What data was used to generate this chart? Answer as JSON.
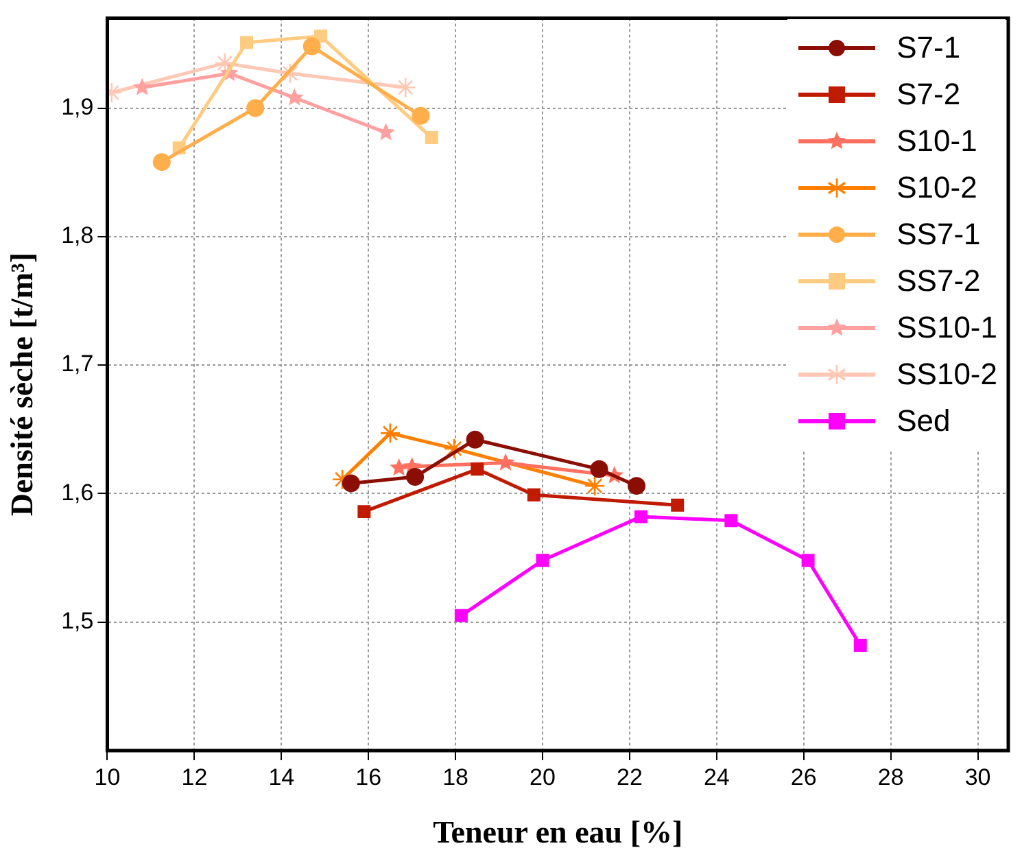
{
  "chart_data": {
    "type": "line",
    "xlabel": "Teneur en eau [%]",
    "ylabel": "Densité sèche [t/m³]",
    "xlim": [
      10,
      30.7
    ],
    "xticks": [
      10,
      12,
      14,
      16,
      18,
      20,
      22,
      24,
      26,
      28,
      30
    ],
    "ylim": [
      1.4,
      1.97
    ],
    "yticks": [
      {
        "value": 1.5,
        "label": "1,5"
      },
      {
        "value": 1.6,
        "label": "1,6"
      },
      {
        "value": 1.7,
        "label": "1,7"
      },
      {
        "value": 1.8,
        "label": "1,8"
      },
      {
        "value": 1.9,
        "label": "1,9"
      }
    ],
    "grid": true,
    "legend": "top right",
    "line_style": "solid",
    "series": [
      {
        "name": "S7-1",
        "color": "#8b0e04",
        "marker": "circle",
        "x": [
          15.6,
          17.07,
          18.45,
          21.3,
          22.16
        ],
        "values": [
          1.608,
          1.613,
          1.642,
          1.619,
          1.606
        ]
      },
      {
        "name": "S7-2",
        "color": "#c01a00",
        "marker": "square",
        "x": [
          15.9,
          18.5,
          19.8,
          23.1
        ],
        "values": [
          1.586,
          1.619,
          1.599,
          1.591
        ]
      },
      {
        "name": "S10-1",
        "color": "#ff7060",
        "marker": "star",
        "x": [
          16.7,
          17.0,
          19.15,
          21.65
        ],
        "values": [
          1.62,
          1.621,
          1.624,
          1.614
        ]
      },
      {
        "name": "S10-2",
        "color": "#ff7f00",
        "marker": "cross",
        "x": [
          15.4,
          16.5,
          17.97,
          21.2
        ],
        "values": [
          1.611,
          1.647,
          1.635,
          1.606
        ]
      },
      {
        "name": "SS7-1",
        "color": "#ffae4a",
        "marker": "circle",
        "x": [
          11.25,
          13.4,
          14.7,
          17.2
        ],
        "values": [
          1.858,
          1.9,
          1.948,
          1.894
        ]
      },
      {
        "name": "SS7-2",
        "color": "#ffcb80",
        "marker": "square",
        "x": [
          11.65,
          13.2,
          14.9,
          17.45
        ],
        "values": [
          1.869,
          1.951,
          1.956,
          1.877
        ]
      },
      {
        "name": "SS10-1",
        "color": "#ffa0a0",
        "marker": "star",
        "x": [
          10.8,
          12.8,
          14.3,
          16.4
        ],
        "values": [
          1.916,
          1.927,
          1.908,
          1.881
        ]
      },
      {
        "name": "SS10-2",
        "color": "#ffc8b4",
        "marker": "cross",
        "x": [
          10.1,
          12.7,
          14.2,
          16.85
        ],
        "values": [
          1.912,
          1.935,
          1.927,
          1.916
        ]
      },
      {
        "name": "Sed",
        "color": "#ff00ff",
        "marker": "square",
        "x": [
          18.13,
          20.0,
          22.26,
          24.33,
          26.1,
          27.3
        ],
        "values": [
          1.505,
          1.548,
          1.582,
          1.579,
          1.548,
          1.482
        ]
      }
    ]
  }
}
